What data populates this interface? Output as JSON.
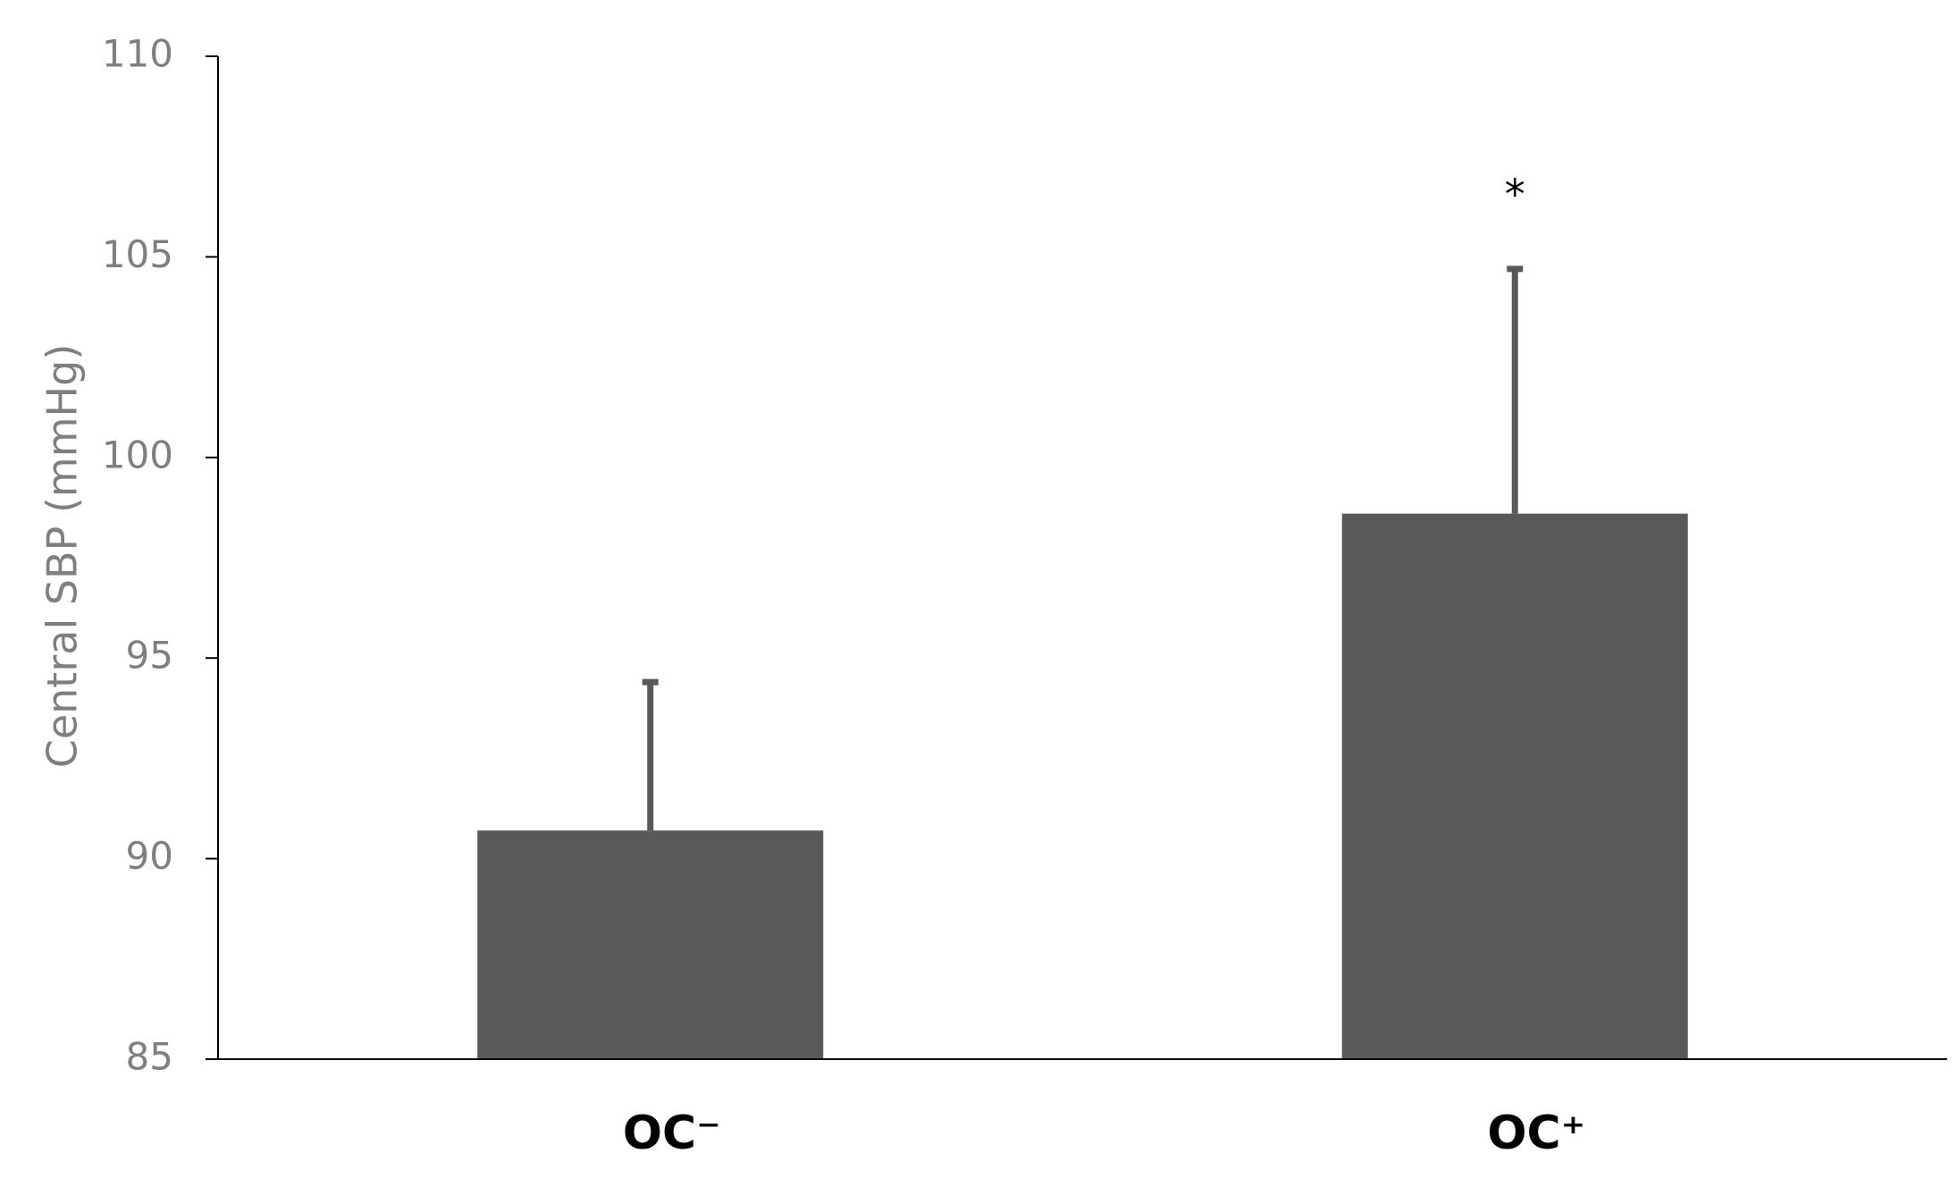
{
  "chart_data": {
    "type": "bar",
    "y_label": "Central SBP (mmHg)",
    "categories": [
      "OC⁻",
      "OC⁺"
    ],
    "values": [
      90.7,
      98.6
    ],
    "errors": [
      3.7,
      6.1
    ],
    "color": "#595959",
    "annotation": "*",
    "ylim": [
      85,
      110
    ],
    "yticks": [
      85,
      90,
      95,
      100,
      105,
      110
    ]
  }
}
